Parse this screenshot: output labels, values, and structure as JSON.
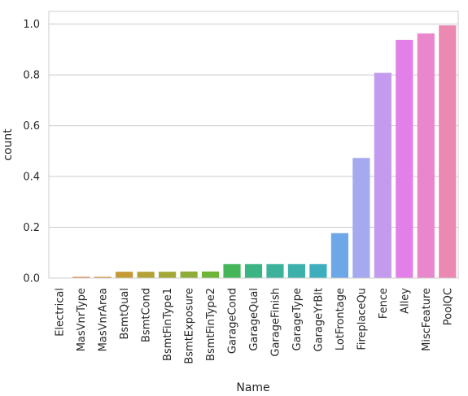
{
  "chart_data": {
    "type": "bar",
    "xlabel": "Name",
    "ylabel": "count",
    "ylim": [
      0,
      1.05
    ],
    "yticks": [
      "0.0",
      "0.2",
      "0.4",
      "0.6",
      "0.8",
      "1.0"
    ],
    "grid": true,
    "categories": [
      "Electrical",
      "MasVnrType",
      "MasVnrArea",
      "BsmtQual",
      "BsmtCond",
      "BsmtFinType1",
      "BsmtExposure",
      "BsmtFinType2",
      "GarageCond",
      "GarageQual",
      "GarageFinish",
      "GarageType",
      "GarageYrBlt",
      "LotFrontage",
      "FireplaceQu",
      "Fence",
      "Alley",
      "MiscFeature",
      "PoolQC"
    ],
    "values": [
      0.001,
      0.005,
      0.005,
      0.025,
      0.025,
      0.025,
      0.026,
      0.026,
      0.055,
      0.055,
      0.055,
      0.055,
      0.055,
      0.177,
      0.473,
      0.808,
      0.938,
      0.963,
      0.995
    ],
    "colors": [
      "#e8736a",
      "#e0844d",
      "#d48e35",
      "#c49a35",
      "#b3a236",
      "#a3a837",
      "#8ead36",
      "#6db537",
      "#45b55a",
      "#3bb483",
      "#3cb29a",
      "#3db0ac",
      "#3eaebe",
      "#6ea7e8",
      "#a6a8f0",
      "#c49aee",
      "#e27fe8",
      "#ea86cc",
      "#ec89b3"
    ]
  }
}
